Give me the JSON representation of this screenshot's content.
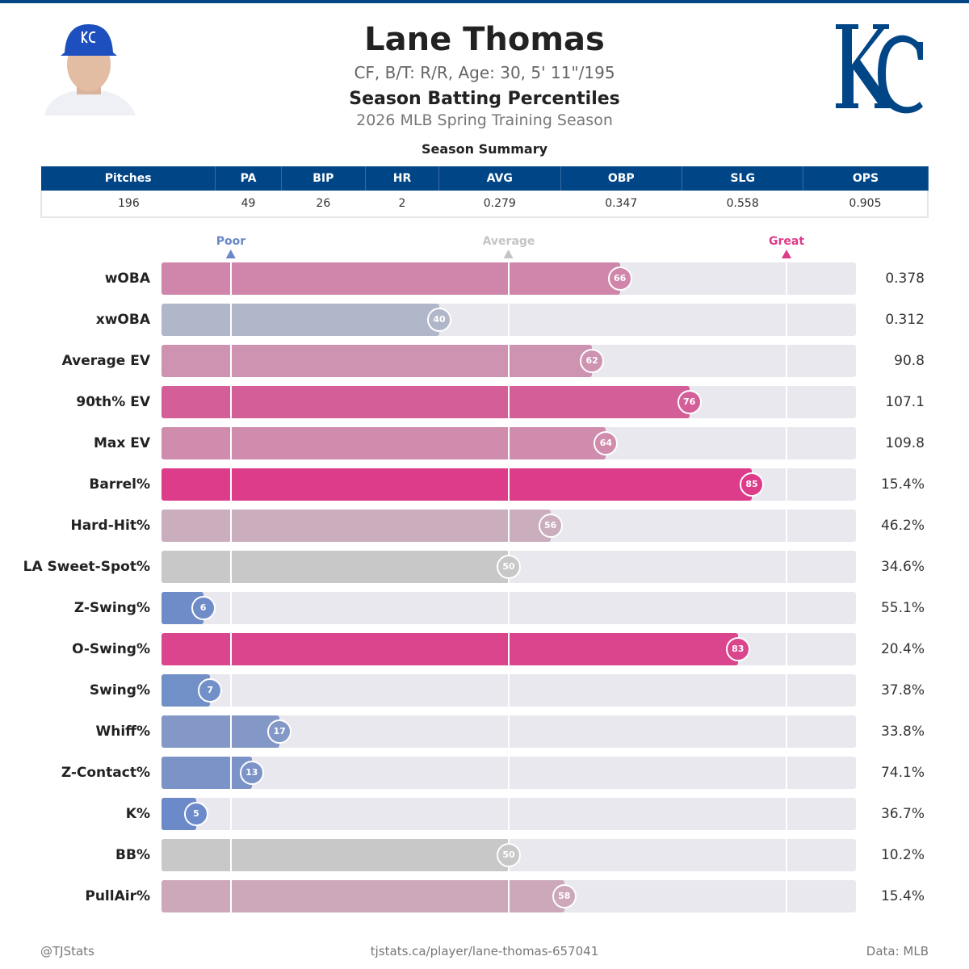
{
  "header": {
    "name": "Lane Thomas",
    "info": "CF, B/T: R/R, Age: 30, 5' 11\"/195",
    "subtitle": "Season Batting Percentiles",
    "season": "2026 MLB Spring Training Season",
    "team_logo": "KC",
    "brand_color": "#004687"
  },
  "summary": {
    "title": "Season Summary",
    "columns": [
      "Pitches",
      "PA",
      "BIP",
      "HR",
      "AVG",
      "OBP",
      "SLG",
      "OPS"
    ],
    "values": [
      "196",
      "49",
      "26",
      "2",
      "0.279",
      "0.347",
      "0.558",
      "0.905"
    ]
  },
  "chart_data": {
    "type": "bar",
    "orientation": "horizontal",
    "xlim": [
      0,
      100
    ],
    "markers": [
      {
        "label": "Poor",
        "value": 10,
        "color": "#6a87c8"
      },
      {
        "label": "Average",
        "value": 50,
        "color": "#c4c4c4"
      },
      {
        "label": "Great",
        "value": 90,
        "color": "#dc3c89"
      }
    ],
    "categories": [
      "wOBA",
      "xwOBA",
      "Average EV",
      "90th% EV",
      "Max EV",
      "Barrel%",
      "Hard-Hit%",
      "LA Sweet-Spot%",
      "Z-Swing%",
      "O-Swing%",
      "Swing%",
      "Whiff%",
      "Z-Contact%",
      "K%",
      "BB%",
      "PullAir%"
    ],
    "percentiles": [
      66,
      40,
      62,
      76,
      64,
      85,
      56,
      50,
      6,
      83,
      7,
      17,
      13,
      5,
      50,
      58
    ],
    "stat_values": [
      "0.378",
      "0.312",
      "90.8",
      "107.1",
      "109.8",
      "15.4%",
      "46.2%",
      "34.6%",
      "55.1%",
      "20.4%",
      "37.8%",
      "33.8%",
      "74.1%",
      "36.7%",
      "10.2%",
      "15.4%"
    ],
    "colors": [
      "#d086aa",
      "#b0b7c8",
      "#cd93b0",
      "#d45f98",
      "#cf8cad",
      "#dc3c89",
      "#cbaebd",
      "#c8c8c8",
      "#6f8cc8",
      "#db458e",
      "#7290c8",
      "#8398c6",
      "#7b93c7",
      "#6c8ac9",
      "#c8c8c8",
      "#cca8ba"
    ]
  },
  "footer": {
    "left": "@TJStats",
    "center": "tjstats.ca/player/lane-thomas-657041",
    "right": "Data: MLB"
  }
}
